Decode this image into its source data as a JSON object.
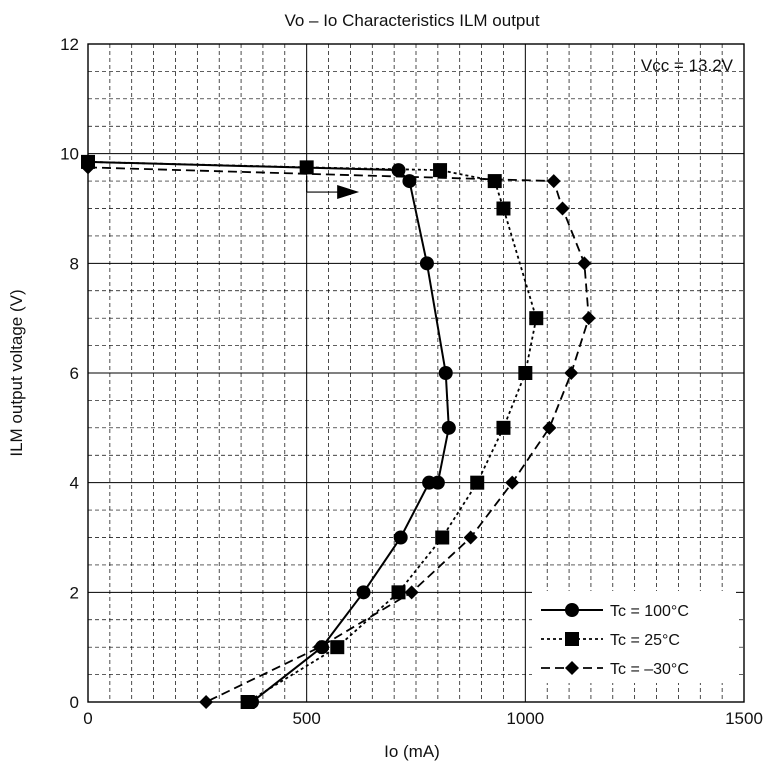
{
  "chart_data": {
    "type": "line",
    "title": "Vo – Io Characteristics   ILM output",
    "xlabel": "Io  (mA)",
    "ylabel": "ILM output voltage  (V)",
    "xlim": [
      0,
      1500
    ],
    "ylim": [
      0,
      12
    ],
    "x_ticks": [
      0,
      500,
      1000,
      1500
    ],
    "y_ticks": [
      0,
      2,
      4,
      6,
      8,
      10,
      12
    ],
    "x_tick_labels": [
      "0",
      "500",
      "1000",
      "1500"
    ],
    "y_tick_labels": [
      "0",
      "2",
      "4",
      "6",
      "8",
      "10",
      "12"
    ],
    "grid": true,
    "legend_position": "bottom-right",
    "annotations": [
      {
        "text": "Vcc = 13.2V",
        "position": "top-right"
      }
    ],
    "arrow": {
      "x0": 500,
      "x1": 620,
      "y": 9.3,
      "direction": "right"
    },
    "series": [
      {
        "name": "Tc = 100°C",
        "line": "solid",
        "marker": "circle",
        "color": "#000000",
        "x": [
          0,
          710,
          735,
          775,
          818,
          825,
          800,
          780,
          715,
          630,
          535,
          375
        ],
        "y": [
          9.85,
          9.7,
          9.5,
          8.0,
          6.0,
          5.0,
          4.0,
          4.0,
          3.0,
          2.0,
          1.0,
          0
        ]
      },
      {
        "name": "Tc = 25°C",
        "line": "dotted",
        "marker": "square",
        "color": "#000000",
        "x": [
          0,
          500,
          805,
          930,
          950,
          1025,
          1000,
          950,
          890,
          810,
          710,
          570,
          365
        ],
        "y": [
          9.85,
          9.75,
          9.7,
          9.5,
          9.0,
          7.0,
          6.0,
          5.0,
          4.0,
          3.0,
          2.0,
          1.0,
          0
        ]
      },
      {
        "name": "Tc = –30°C",
        "line": "dashed",
        "marker": "diamond",
        "color": "#000000",
        "x": [
          0,
          1065,
          1085,
          1135,
          1145,
          1105,
          1055,
          970,
          875,
          740,
          530,
          270
        ],
        "y": [
          9.75,
          9.5,
          9.0,
          8.0,
          7.0,
          6.0,
          5.0,
          4.0,
          3.0,
          2.0,
          1.0,
          0
        ]
      }
    ]
  }
}
